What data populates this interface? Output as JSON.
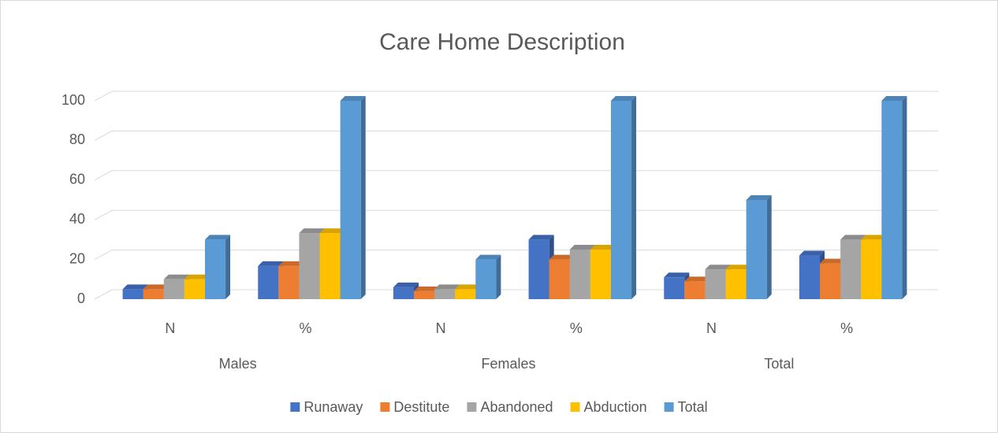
{
  "chart_data": {
    "type": "bar",
    "title": "Care Home Description",
    "categories": [
      "N",
      "%",
      "N",
      "%",
      "N",
      "%"
    ],
    "group_labels": [
      "Males",
      "Females",
      "Total"
    ],
    "series": [
      {
        "name": "Runaway",
        "color": "#4472c4",
        "values": [
          5,
          16.7,
          6,
          30,
          11,
          22
        ]
      },
      {
        "name": "Destitute",
        "color": "#ed7d31",
        "values": [
          5,
          16.7,
          4,
          20,
          9,
          18
        ]
      },
      {
        "name": "Abandoned",
        "color": "#a5a5a5",
        "values": [
          10,
          33.3,
          5,
          25,
          15,
          30
        ]
      },
      {
        "name": "Abduction",
        "color": "#ffc000",
        "values": [
          10,
          33.3,
          5,
          25,
          15,
          30
        ]
      },
      {
        "name": "Total",
        "color": "#5b9bd5",
        "values": [
          30,
          100,
          20,
          100,
          50,
          100
        ]
      }
    ],
    "ylim": [
      0,
      100
    ],
    "yticks": [
      0,
      20,
      40,
      60,
      80,
      100
    ],
    "grid": true,
    "legend": "bottom"
  }
}
